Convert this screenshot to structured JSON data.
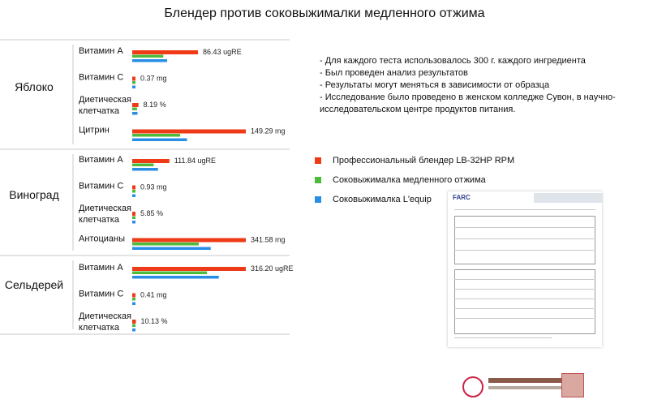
{
  "page": {
    "title": "Блендер против соковыжималки медленного отжима"
  },
  "notes": [
    "- Для каждого теста использовалось 300 г. каждого ингредиента",
    "- Был проведен анализ результатов",
    "- Результаты могут меняться в зависимости от образца",
    "- Исследование было проведено в женском колледже Сувон, в научно-исследовательском центре продуктов питания."
  ],
  "legend": [
    {
      "label": "Профессиональный блендер LB-32HP RPM",
      "color": "#ee3a16"
    },
    {
      "label": "Соковыжималка медленного отжима",
      "color": "#4cba3a"
    },
    {
      "label": "Соковыжималка L'equip",
      "color": "#2a8ee6"
    }
  ],
  "chart_data": {
    "type": "bar",
    "orientation": "horizontal",
    "series": [
      {
        "name": "Профессиональный блендер LB-32HP RPM",
        "color": "#ee3a16"
      },
      {
        "name": "Соковыжималка медленного отжима",
        "color": "#4cba3a"
      },
      {
        "name": "Соковыжималка L'equip",
        "color": "#2a8ee6"
      }
    ],
    "groups": [
      {
        "name": "Яблоко",
        "rows": [
          {
            "label": "Витамин A",
            "value_label": "86.43 ugRE",
            "values": [
              86.43,
              40.8,
              45.9
            ]
          },
          {
            "label": "Витамин C",
            "value_label": "0.37 mg",
            "values": [
              0.37,
              0.3,
              0.33
            ]
          },
          {
            "label": "Диетическая клетчатка",
            "value_label": "8.19 %",
            "values": [
              8.19,
              6.3,
              6.9
            ]
          },
          {
            "label": "Цитрин",
            "value_label": "149.29 mg",
            "values": [
              149.29,
              63,
              72
            ]
          }
        ]
      },
      {
        "name": "Виноград",
        "rows": [
          {
            "label": "Витамин A",
            "value_label": "111.84 ugRE",
            "values": [
              111.84,
              64.5,
              77.4
            ]
          },
          {
            "label": "Витамин C",
            "value_label": "0.93 mg",
            "values": [
              0.93,
              0.55,
              0.64
            ]
          },
          {
            "label": "Диетическая клетчатка",
            "value_label": "5.85 %",
            "values": [
              5.85,
              3.9,
              4.4
            ]
          },
          {
            "label": "Антоцианы",
            "value_label": "341.58 mg",
            "values": [
              341.58,
              200,
              236
            ]
          }
        ]
      },
      {
        "name": "Сельдерей",
        "rows": [
          {
            "label": "Витамин A",
            "value_label": "316.20 ugRE",
            "values": [
              316.2,
              208,
              241
            ]
          },
          {
            "label": "Витамин C",
            "value_label": "0.41 mg",
            "values": [
              0.41,
              0.25,
              0.33
            ]
          },
          {
            "label": "Диетическая клетчатка",
            "value_label": "10.13 %",
            "values": [
              10.13,
              6.6,
              8.1
            ]
          }
        ]
      }
    ]
  }
}
